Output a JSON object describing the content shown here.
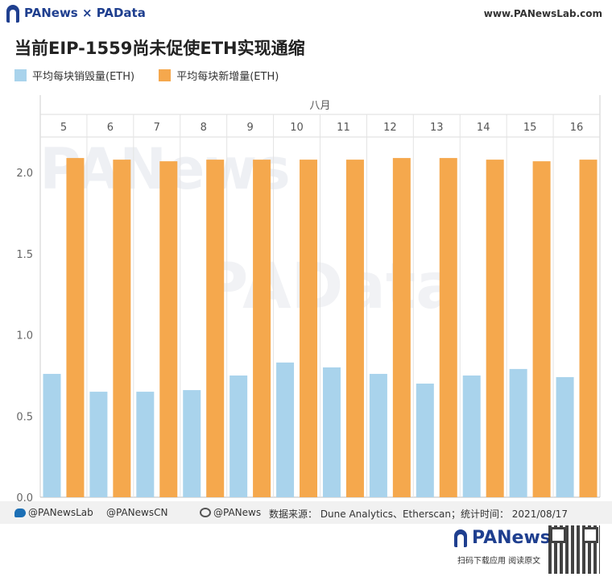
{
  "header": {
    "brand": "PANews × PAData",
    "site": "www.PANewsLab.com"
  },
  "title": "当前EIP-1559尚未促使ETH实现通缩",
  "legend": [
    {
      "label": "平均每块销毁量(ETH)",
      "color": "#a9d3ec"
    },
    {
      "label": "平均每块新增量(ETH)",
      "color": "#f5a84d"
    }
  ],
  "chart_data": {
    "type": "bar",
    "group_label": "八月",
    "categories": [
      "5",
      "6",
      "7",
      "8",
      "9",
      "10",
      "11",
      "12",
      "13",
      "14",
      "15",
      "16"
    ],
    "series": [
      {
        "name": "平均每块销毁量(ETH)",
        "values": [
          0.76,
          0.65,
          0.65,
          0.66,
          0.75,
          0.83,
          0.8,
          0.76,
          0.7,
          0.75,
          0.79,
          0.74
        ]
      },
      {
        "name": "平均每块新增量(ETH)",
        "values": [
          2.09,
          2.08,
          2.07,
          2.08,
          2.08,
          2.08,
          2.08,
          2.09,
          2.09,
          2.08,
          2.07,
          2.08
        ]
      }
    ],
    "ylim": [
      0,
      2.15
    ],
    "yticks": [
      "0.0",
      "0.5",
      "1.0",
      "1.5",
      "2.0"
    ],
    "colors": [
      "#a9d3ec",
      "#f5a84d"
    ],
    "watermark_text": [
      "PANews",
      "PAData"
    ]
  },
  "footer": {
    "twitter": "@PANewsLab",
    "twitter2": "@PANewsCN",
    "weibo": "@PANews",
    "source": "数据来源： Dune Analytics、Etherscan；统计时间： 2021/08/17"
  },
  "bottom": {
    "logo": "PANews",
    "sub": "扫码下载应用 阅读原文"
  }
}
